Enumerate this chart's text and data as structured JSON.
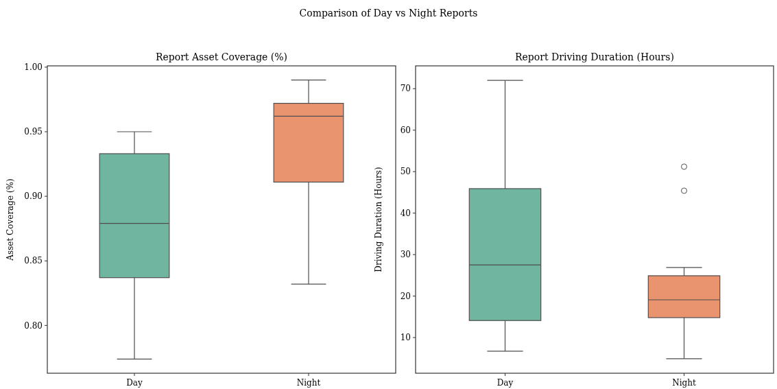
{
  "chart_data": [
    {
      "type": "box",
      "title": "Report Asset Coverage (%)",
      "ylabel": "Asset Coverage (%)",
      "annotations": [
        "Comparison of Day vs Night Reports"
      ],
      "categories": [
        "Day",
        "Night"
      ],
      "colors": [
        "#70b59f",
        "#e9946f"
      ],
      "boxes": [
        {
          "low": 0.774,
          "q1": 0.837,
          "median": 0.879,
          "q3": 0.933,
          "high": 0.95
        },
        {
          "low": 0.832,
          "q1": 0.911,
          "median": 0.962,
          "q3": 0.972,
          "high": 0.99
        }
      ],
      "ylim": [
        0.763,
        1.001
      ],
      "yticks": [
        {
          "value": 0.8,
          "label": "0.80"
        },
        {
          "value": 0.85,
          "label": "0.85"
        },
        {
          "value": 0.9,
          "label": "0.90"
        },
        {
          "value": 0.95,
          "label": "0.95"
        },
        {
          "value": 1.0,
          "label": "1.00"
        }
      ],
      "grid": false
    },
    {
      "type": "box",
      "title": "Report Driving Duration (Hours)",
      "ylabel": "Driving Duration (Hours)",
      "categories": [
        "Day",
        "Night"
      ],
      "colors": [
        "#70b59f",
        "#e9946f"
      ],
      "boxes": [
        {
          "low": 6.7,
          "q1": 14.1,
          "median": 27.5,
          "q3": 45.9,
          "high": 72
        },
        {
          "low": 4.9,
          "q1": 14.8,
          "median": 19.1,
          "q3": 24.9,
          "high": 26.9,
          "outliers": [
            51.2,
            45.4
          ]
        }
      ],
      "ylim": [
        1.4,
        75.5
      ],
      "yticks": [
        10,
        20,
        30,
        40,
        50,
        60,
        70
      ],
      "grid": false
    }
  ]
}
